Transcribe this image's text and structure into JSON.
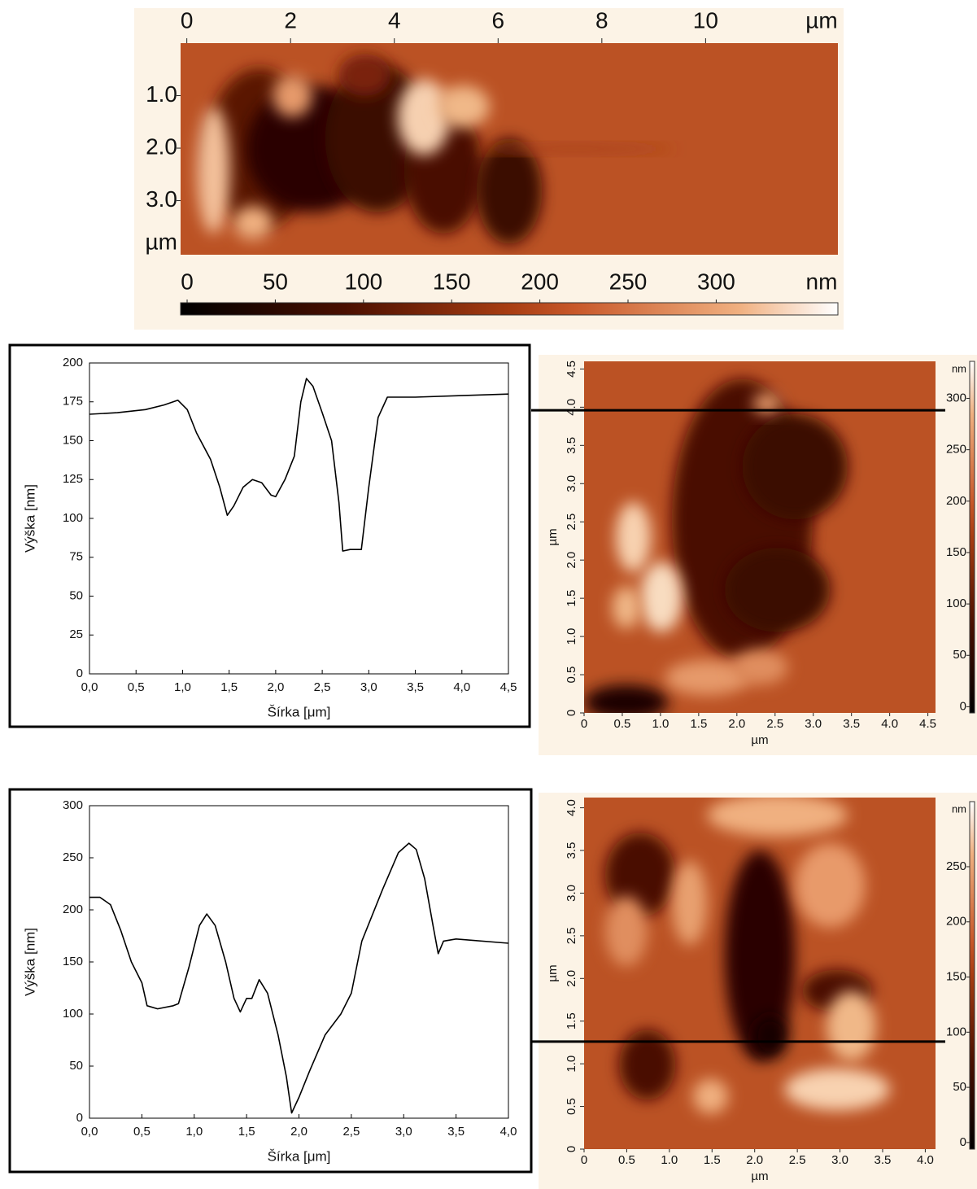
{
  "chart_data": [
    {
      "type": "image",
      "xlim": [
        -0.12,
        12.55
      ],
      "xticks": [
        0,
        2,
        4,
        6,
        8,
        10
      ],
      "x_label": "µm",
      "ylim": [
        0,
        4.03
      ],
      "y_inverted": true,
      "yticks": [
        {
          "value": 1,
          "label": "1.0"
        },
        {
          "value": 2,
          "label": "2.0"
        },
        {
          "value": 3,
          "label": "3.0"
        }
      ],
      "y_label": "µm",
      "clim": [
        -3.7,
        369
      ],
      "cticks": [
        0,
        50,
        100,
        150,
        200,
        250,
        300
      ],
      "c_label": "nm",
      "colorbar": "bottom"
    },
    {
      "type": "line",
      "xlim": [
        0,
        4.5
      ],
      "ylim": [
        0,
        200
      ],
      "xticks": [
        {
          "value": 0,
          "label": "0,0"
        },
        {
          "value": 0.5,
          "label": "0,5"
        },
        {
          "value": 1,
          "label": "1,0"
        },
        {
          "value": 1.5,
          "label": "1,5"
        },
        {
          "value": 2,
          "label": "2,0"
        },
        {
          "value": 2.5,
          "label": "2,5"
        },
        {
          "value": 3,
          "label": "3,0"
        },
        {
          "value": 3.5,
          "label": "3,5"
        },
        {
          "value": 4,
          "label": "4,0"
        },
        {
          "value": 4.5,
          "label": "4,5"
        }
      ],
      "yticks": [
        0,
        25,
        50,
        75,
        100,
        125,
        150,
        175,
        200
      ],
      "x_label": "Šírka [μm]",
      "y_label": "Výška [nm]",
      "color": "#000000",
      "x": [
        0,
        0.3,
        0.6,
        0.8,
        0.95,
        1.05,
        1.15,
        1.3,
        1.4,
        1.48,
        1.55,
        1.65,
        1.75,
        1.85,
        1.95,
        2.0,
        2.1,
        2.2,
        2.27,
        2.33,
        2.4,
        2.5,
        2.6,
        2.68,
        2.72,
        2.8,
        2.92,
        3.0,
        3.1,
        3.2,
        3.5,
        4.0,
        4.5
      ],
      "values": [
        167,
        168,
        170,
        173,
        176,
        170,
        155,
        138,
        120,
        102,
        108,
        120,
        125,
        123,
        115,
        114,
        125,
        140,
        175,
        190,
        185,
        168,
        150,
        110,
        79,
        80,
        80,
        120,
        165,
        178,
        178,
        179,
        180
      ]
    },
    {
      "type": "image",
      "xlim": [
        0,
        4.6
      ],
      "ylim": [
        0,
        4.6
      ],
      "xticks": [
        0,
        0.5,
        {
          "value": 1,
          "label": "1.0"
        },
        1.5,
        {
          "value": 2,
          "label": "2.0"
        },
        2.5,
        {
          "value": 3,
          "label": "3.0"
        },
        3.5,
        {
          "value": 4,
          "label": "4.0"
        },
        4.5
      ],
      "yticks": [
        0,
        0.5,
        {
          "value": 1,
          "label": "1.0"
        },
        1.5,
        {
          "value": 2,
          "label": "2.0"
        },
        2.5,
        {
          "value": 3,
          "label": "3.0"
        },
        3.5,
        {
          "value": 4,
          "label": "4.0"
        },
        4.5
      ],
      "x_label": "µm",
      "y_label": "µm",
      "clim": [
        -6,
        336
      ],
      "cticks": [
        0,
        50,
        100,
        150,
        200,
        250,
        300
      ],
      "c_label": "nm",
      "colorbar": "right",
      "profile_y": 3.96
    },
    {
      "type": "line",
      "xlim": [
        0,
        4
      ],
      "ylim": [
        0,
        300
      ],
      "xticks": [
        {
          "value": 0,
          "label": "0,0"
        },
        {
          "value": 0.5,
          "label": "0,5"
        },
        {
          "value": 1,
          "label": "1,0"
        },
        {
          "value": 1.5,
          "label": "1,5"
        },
        {
          "value": 2,
          "label": "2,0"
        },
        {
          "value": 2.5,
          "label": "2,5"
        },
        {
          "value": 3,
          "label": "3,0"
        },
        {
          "value": 3.5,
          "label": "3,5"
        },
        {
          "value": 4,
          "label": "4,0"
        }
      ],
      "yticks": [
        0,
        50,
        100,
        150,
        200,
        250,
        300
      ],
      "x_label": "Šírka [μm]",
      "y_label": "Výška [nm]",
      "color": "#000000",
      "x": [
        0,
        0.1,
        0.2,
        0.3,
        0.4,
        0.5,
        0.55,
        0.65,
        0.8,
        0.85,
        0.95,
        1.05,
        1.12,
        1.2,
        1.3,
        1.38,
        1.44,
        1.5,
        1.55,
        1.62,
        1.7,
        1.8,
        1.88,
        1.93,
        2.0,
        2.1,
        2.25,
        2.4,
        2.5,
        2.6,
        2.8,
        2.95,
        3.05,
        3.12,
        3.2,
        3.28,
        3.33,
        3.38,
        3.5,
        4.0
      ],
      "values": [
        212,
        212,
        205,
        180,
        150,
        130,
        108,
        105,
        108,
        110,
        145,
        185,
        196,
        185,
        150,
        115,
        102,
        115,
        115,
        133,
        120,
        80,
        40,
        5,
        20,
        45,
        80,
        100,
        120,
        170,
        220,
        255,
        264,
        258,
        230,
        185,
        158,
        170,
        172,
        168
      ]
    },
    {
      "type": "image",
      "xlim": [
        0,
        4.12
      ],
      "ylim": [
        0,
        4.12
      ],
      "xticks": [
        0,
        0.5,
        {
          "value": 1,
          "label": "1.0"
        },
        1.5,
        {
          "value": 2,
          "label": "2.0"
        },
        2.5,
        {
          "value": 3,
          "label": "3.0"
        },
        3.5,
        {
          "value": 4,
          "label": "4.0"
        }
      ],
      "yticks": [
        0,
        0.5,
        {
          "value": 1,
          "label": "1.0"
        },
        1.5,
        {
          "value": 2,
          "label": "2.0"
        },
        2.5,
        {
          "value": 3,
          "label": "3.0"
        },
        3.5,
        {
          "value": 4,
          "label": "4.0"
        }
      ],
      "x_label": "µm",
      "y_label": "µm",
      "clim": [
        -6,
        309
      ],
      "cticks": [
        0,
        50,
        100,
        150,
        200,
        250
      ],
      "c_label": "nm",
      "colorbar": "right",
      "profile_y": 1.26
    }
  ]
}
